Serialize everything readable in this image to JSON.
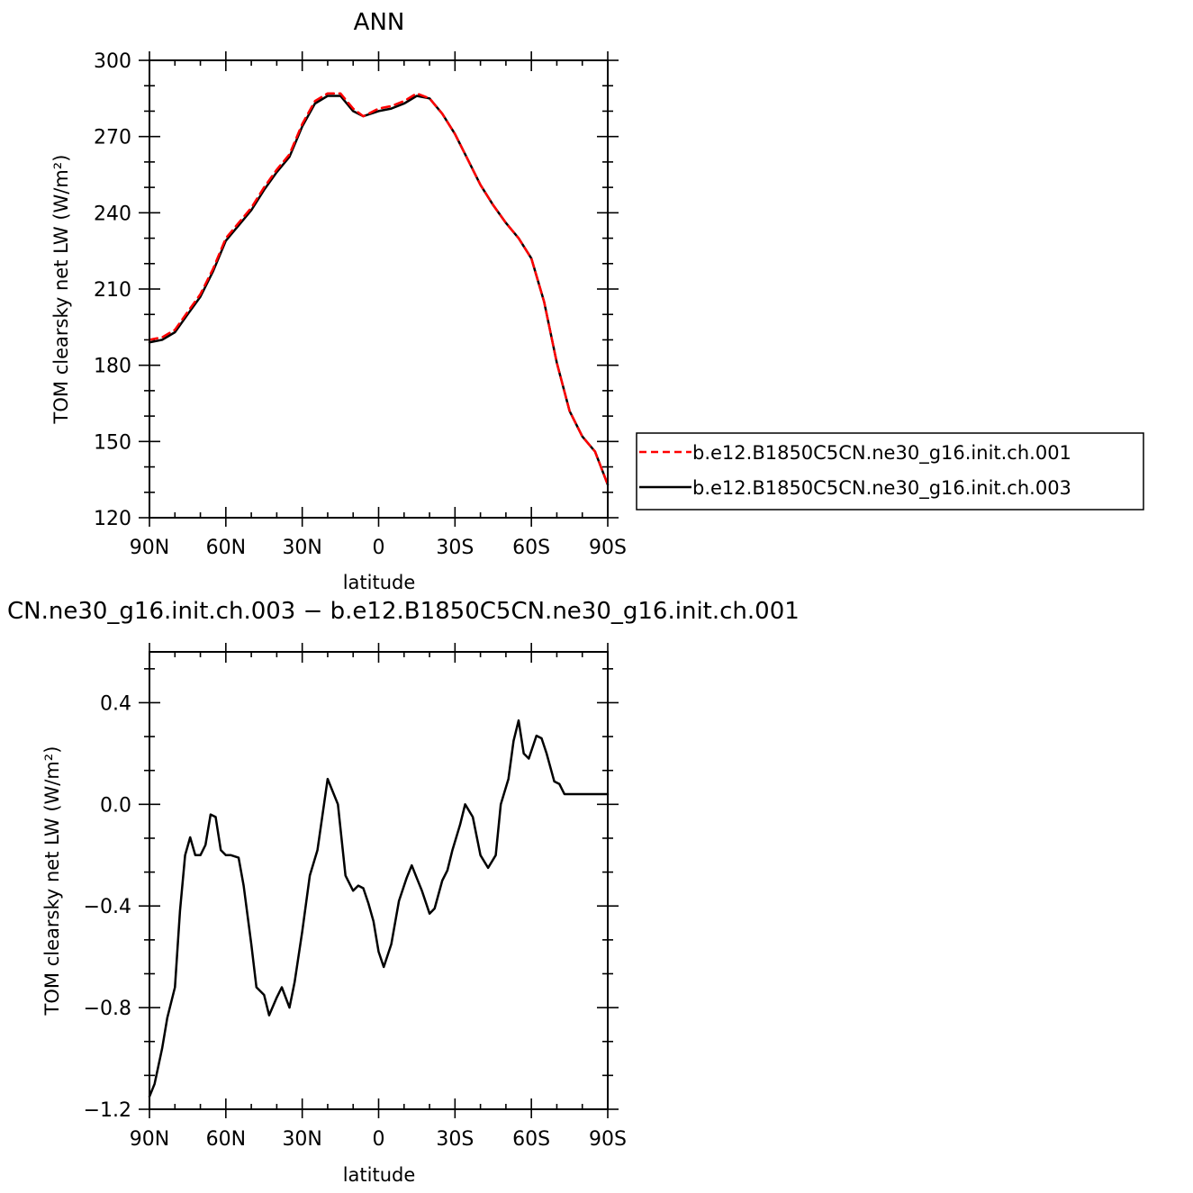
{
  "chart_data": [
    {
      "type": "line",
      "title": "ANN",
      "xlabel": "latitude",
      "ylabel": "TOM clearsky net LW (W/m²)",
      "xlim": [
        90,
        -90
      ],
      "ylim": [
        120,
        300
      ],
      "x_ticks": [
        90,
        60,
        30,
        0,
        -30,
        -60,
        -90
      ],
      "x_tick_labels": [
        "90N",
        "60N",
        "30N",
        "0",
        "30S",
        "60S",
        "90S"
      ],
      "y_ticks": [
        120,
        150,
        180,
        210,
        240,
        270,
        300
      ],
      "y_tick_labels": [
        "120",
        "150",
        "180",
        "210",
        "240",
        "270",
        "300"
      ],
      "legend_position": "right",
      "x": [
        90,
        85,
        80,
        75,
        70,
        65,
        60,
        55,
        50,
        45,
        40,
        35,
        30,
        25,
        20,
        15,
        10,
        6,
        0,
        -5,
        -10,
        -15,
        -20,
        -25,
        -30,
        -35,
        -40,
        -45,
        -50,
        -55,
        -60,
        -65,
        -70,
        -75,
        -80,
        -85,
        -90
      ],
      "series": [
        {
          "name": "b.e12.B1850C5CN.ne30_g16.init.ch.001",
          "color": "#ff0000",
          "dash": "dashed",
          "values": [
            190,
            191,
            194,
            201,
            208,
            218,
            230,
            236,
            242,
            250,
            257,
            263,
            275,
            284,
            287,
            287,
            281,
            278,
            281,
            282,
            284,
            287,
            285,
            279,
            271,
            261,
            251,
            243,
            236,
            230,
            222,
            205,
            181,
            162,
            152,
            146,
            133
          ]
        },
        {
          "name": "b.e12.B1850C5CN.ne30_g16.init.ch.003",
          "color": "#000000",
          "dash": "solid",
          "values": [
            189,
            190,
            193,
            200,
            207,
            217,
            229,
            235,
            241,
            249,
            256,
            262,
            274,
            283,
            286,
            286,
            280,
            278,
            280,
            281,
            283,
            286,
            285,
            279,
            271,
            261,
            251,
            243,
            236,
            230,
            222,
            205,
            181,
            162,
            152,
            146,
            133
          ]
        }
      ]
    },
    {
      "type": "line",
      "title": "CN.ne30_g16.init.ch.003 − b.e12.B1850C5CN.ne30_g16.init.ch.001",
      "xlabel": "latitude",
      "ylabel": "TOM clearsky net LW (W/m²)",
      "xlim": [
        90,
        -90
      ],
      "ylim": [
        -1.2,
        0.6
      ],
      "x_ticks": [
        90,
        60,
        30,
        0,
        -30,
        -60,
        -90
      ],
      "x_tick_labels": [
        "90N",
        "60N",
        "30N",
        "0",
        "30S",
        "60S",
        "90S"
      ],
      "y_ticks": [
        -1.2,
        -0.8,
        -0.4,
        0.0,
        0.4
      ],
      "y_tick_labels": [
        "−1.2",
        "−0.8",
        "−0.4",
        "0.0",
        "0.4"
      ],
      "x": [
        90,
        88,
        85,
        83,
        80,
        78,
        76,
        74,
        72,
        70,
        68,
        66,
        64,
        62,
        60,
        58,
        55,
        53,
        50,
        48,
        45,
        43,
        40,
        38,
        35,
        33,
        30,
        27,
        24,
        20,
        16,
        13,
        10,
        8,
        6,
        4,
        2,
        0,
        -2,
        -5,
        -8,
        -11,
        -13,
        -15,
        -17,
        -20,
        -22,
        -25,
        -27,
        -29,
        -32,
        -34,
        -37,
        -40,
        -43,
        -46,
        -48,
        -51,
        -53,
        -55,
        -57,
        -59,
        -62,
        -64,
        -66,
        -69,
        -71,
        -73,
        -75,
        -77,
        -79,
        -81,
        -83,
        -85,
        -87,
        -89,
        -90
      ],
      "series": [
        {
          "name": "",
          "color": "#000000",
          "dash": "solid",
          "values": [
            -1.15,
            -1.1,
            -0.96,
            -0.84,
            -0.72,
            -0.42,
            -0.2,
            -0.13,
            -0.2,
            -0.2,
            -0.16,
            -0.04,
            -0.05,
            -0.18,
            -0.2,
            -0.2,
            -0.21,
            -0.32,
            -0.55,
            -0.72,
            -0.75,
            -0.83,
            -0.76,
            -0.72,
            -0.8,
            -0.7,
            -0.5,
            -0.28,
            -0.18,
            0.1,
            0.0,
            -0.28,
            -0.34,
            -0.32,
            -0.33,
            -0.39,
            -0.46,
            -0.58,
            -0.64,
            -0.55,
            -0.38,
            -0.29,
            -0.24,
            -0.29,
            -0.34,
            -0.43,
            -0.41,
            -0.3,
            -0.26,
            -0.18,
            -0.08,
            0.0,
            -0.05,
            -0.2,
            -0.25,
            -0.2,
            0.0,
            0.1,
            0.25,
            0.33,
            0.2,
            0.18,
            0.27,
            0.26,
            0.2,
            0.09,
            0.08,
            0.04,
            0.04,
            0.04,
            0.04,
            0.04,
            0.04,
            0.04,
            0.04,
            0.04,
            0.04
          ]
        }
      ]
    }
  ]
}
